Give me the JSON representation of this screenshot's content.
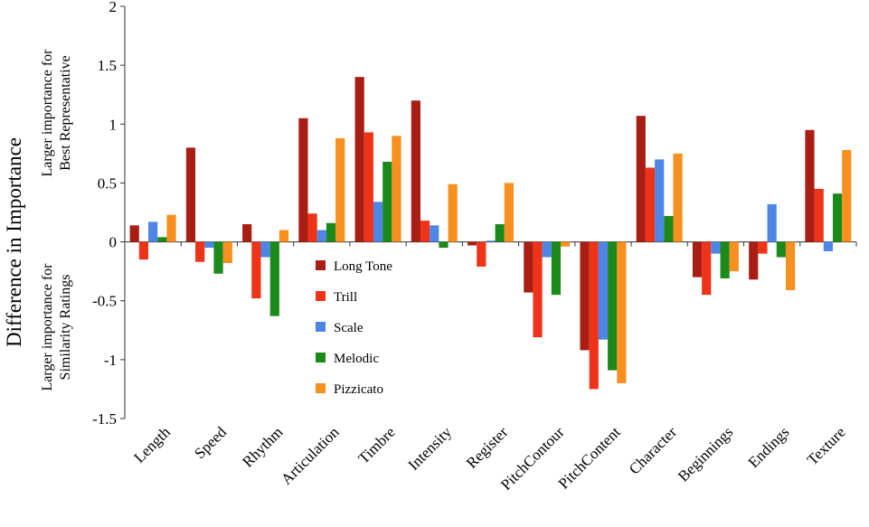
{
  "chart_data": {
    "type": "bar",
    "title": "",
    "ylabel": "Difference in Importance",
    "ylabel_upper": [
      "Larger importance for",
      "Best Representative"
    ],
    "ylabel_lower": [
      "Larger importance for",
      "Similarity Ratings"
    ],
    "ylim": [
      -1.5,
      2
    ],
    "yticks": [
      2,
      1.5,
      1,
      0.5,
      0,
      -0.5,
      -1,
      -1.5
    ],
    "ytick_labels": [
      "2",
      "1.5",
      "1",
      "0.5",
      "0",
      "-0.5",
      "-1",
      "-1.5"
    ],
    "grid": false,
    "legend_position": "center-left",
    "categories": [
      "Length",
      "Speed",
      "Rhythm",
      "Articulation",
      "Timbre",
      "Intensity",
      "Register",
      "PitchContour",
      "PitchContent",
      "Character",
      "Beginnings",
      "Endings",
      "Texture"
    ],
    "series": [
      {
        "name": "Long Tone",
        "color": "#a81e14",
        "values": [
          0.14,
          0.8,
          0.15,
          1.05,
          1.4,
          1.2,
          -0.03,
          -0.43,
          -0.92,
          1.07,
          -0.3,
          -0.32,
          0.95
        ]
      },
      {
        "name": "Trill",
        "color": "#ee3319",
        "values": [
          -0.15,
          -0.17,
          -0.48,
          0.24,
          0.93,
          0.18,
          -0.21,
          -0.81,
          -1.25,
          0.63,
          -0.45,
          -0.1,
          0.45
        ]
      },
      {
        "name": "Scale",
        "color": "#4e86e6",
        "values": [
          0.17,
          -0.05,
          -0.13,
          0.1,
          0.34,
          0.14,
          0.01,
          -0.13,
          -0.83,
          0.7,
          -0.1,
          0.32,
          -0.08
        ]
      },
      {
        "name": "Melodic",
        "color": "#1b8a1b",
        "values": [
          0.04,
          -0.27,
          -0.63,
          0.16,
          0.68,
          -0.05,
          0.15,
          -0.45,
          -1.09,
          0.22,
          -0.31,
          -0.13,
          0.41
        ]
      },
      {
        "name": "Pizzicato",
        "color": "#f7901e",
        "values": [
          0.23,
          -0.18,
          0.1,
          0.88,
          0.9,
          0.49,
          0.5,
          -0.04,
          -1.2,
          0.75,
          -0.25,
          -0.41,
          0.78
        ]
      }
    ]
  }
}
